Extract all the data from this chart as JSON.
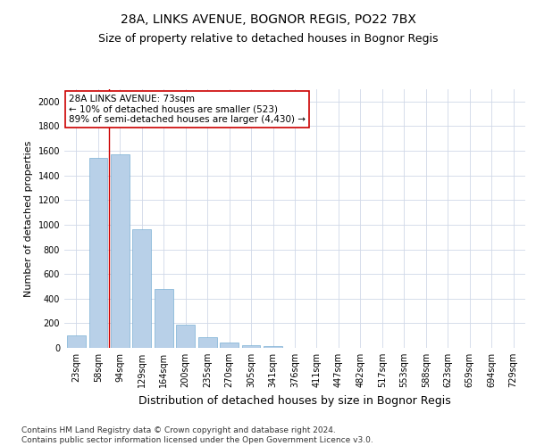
{
  "title": "28A, LINKS AVENUE, BOGNOR REGIS, PO22 7BX",
  "subtitle": "Size of property relative to detached houses in Bognor Regis",
  "xlabel": "Distribution of detached houses by size in Bognor Regis",
  "ylabel": "Number of detached properties",
  "categories": [
    "23sqm",
    "58sqm",
    "94sqm",
    "129sqm",
    "164sqm",
    "200sqm",
    "235sqm",
    "270sqm",
    "305sqm",
    "341sqm",
    "376sqm",
    "411sqm",
    "447sqm",
    "482sqm",
    "517sqm",
    "553sqm",
    "588sqm",
    "623sqm",
    "659sqm",
    "694sqm",
    "729sqm"
  ],
  "values": [
    100,
    1540,
    1570,
    960,
    475,
    190,
    90,
    40,
    25,
    15,
    0,
    0,
    0,
    0,
    0,
    0,
    0,
    0,
    0,
    0,
    0
  ],
  "bar_color": "#b8d0e8",
  "bar_edge_color": "#7aafd4",
  "vline_x": 1.5,
  "vline_color": "#cc0000",
  "annotation_text": "28A LINKS AVENUE: 73sqm\n← 10% of detached houses are smaller (523)\n89% of semi-detached houses are larger (4,430) →",
  "annotation_box_color": "#ffffff",
  "annotation_box_edge": "#cc0000",
  "ylim": [
    0,
    2100
  ],
  "yticks": [
    0,
    200,
    400,
    600,
    800,
    1000,
    1200,
    1400,
    1600,
    1800,
    2000
  ],
  "grid_color": "#d0d8e8",
  "bg_color": "#ffffff",
  "footnote": "Contains HM Land Registry data © Crown copyright and database right 2024.\nContains public sector information licensed under the Open Government Licence v3.0.",
  "title_fontsize": 10,
  "subtitle_fontsize": 9,
  "xlabel_fontsize": 9,
  "ylabel_fontsize": 8,
  "tick_fontsize": 7,
  "annotation_fontsize": 7.5,
  "footnote_fontsize": 6.5
}
